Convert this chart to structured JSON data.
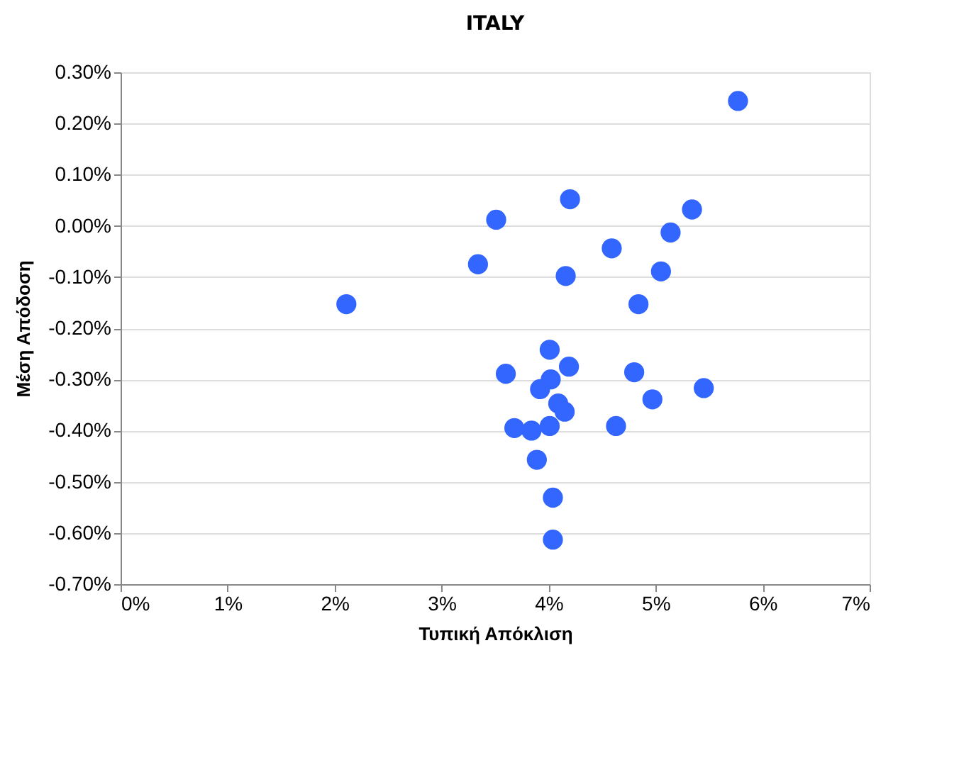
{
  "chart_data": {
    "type": "scatter",
    "title": "ITALY",
    "xlabel": "Τυπική Απόκλιση",
    "ylabel": "Μέση Απόδοση",
    "x": [
      5.77,
      2.11,
      3.51,
      3.34,
      4.2,
      4.16,
      4.59,
      4.84,
      5.05,
      5.14,
      5.34,
      4.01,
      4.19,
      3.6,
      4.02,
      3.92,
      4.09,
      4.15,
      4.01,
      3.84,
      3.68,
      3.89,
      4.04,
      4.04,
      4.8,
      4.97,
      5.45,
      4.63
    ],
    "series": [
      {
        "color": "#3366ff",
        "values": [
          0.244,
          -0.153,
          0.012,
          -0.075,
          0.052,
          -0.098,
          -0.044,
          -0.153,
          -0.089,
          -0.013,
          0.032,
          -0.242,
          -0.275,
          -0.289,
          -0.3,
          -0.319,
          -0.347,
          -0.363,
          -0.391,
          -0.4,
          -0.395,
          -0.457,
          -0.531,
          -0.613,
          -0.286,
          -0.339,
          -0.317,
          -0.391
        ]
      }
    ],
    "xlim": [
      0,
      7
    ],
    "ylim": [
      -0.7,
      0.3
    ],
    "xticks": [
      {
        "value": 0,
        "label": "0%"
      },
      {
        "value": 1,
        "label": "1%"
      },
      {
        "value": 2,
        "label": "2%"
      },
      {
        "value": 3,
        "label": "3%"
      },
      {
        "value": 4,
        "label": "4%"
      },
      {
        "value": 5,
        "label": "5%"
      },
      {
        "value": 6,
        "label": "6%"
      },
      {
        "value": 7,
        "label": "7%"
      }
    ],
    "yticks": [
      {
        "value": 0.3,
        "label": "0.30%"
      },
      {
        "value": 0.2,
        "label": "0.20%"
      },
      {
        "value": 0.1,
        "label": "0.10%"
      },
      {
        "value": 0,
        "label": "0.00%"
      },
      {
        "value": -0.1,
        "label": "-0.10%"
      },
      {
        "value": -0.2,
        "label": "-0.20%"
      },
      {
        "value": -0.3,
        "label": "-0.30%"
      },
      {
        "value": -0.4,
        "label": "-0.40%"
      },
      {
        "value": -0.5,
        "label": "-0.50%"
      },
      {
        "value": -0.6,
        "label": "-0.60%"
      },
      {
        "value": -0.7,
        "label": "-0.70%"
      }
    ],
    "grid": "y",
    "marker": "circle",
    "legend": false
  }
}
